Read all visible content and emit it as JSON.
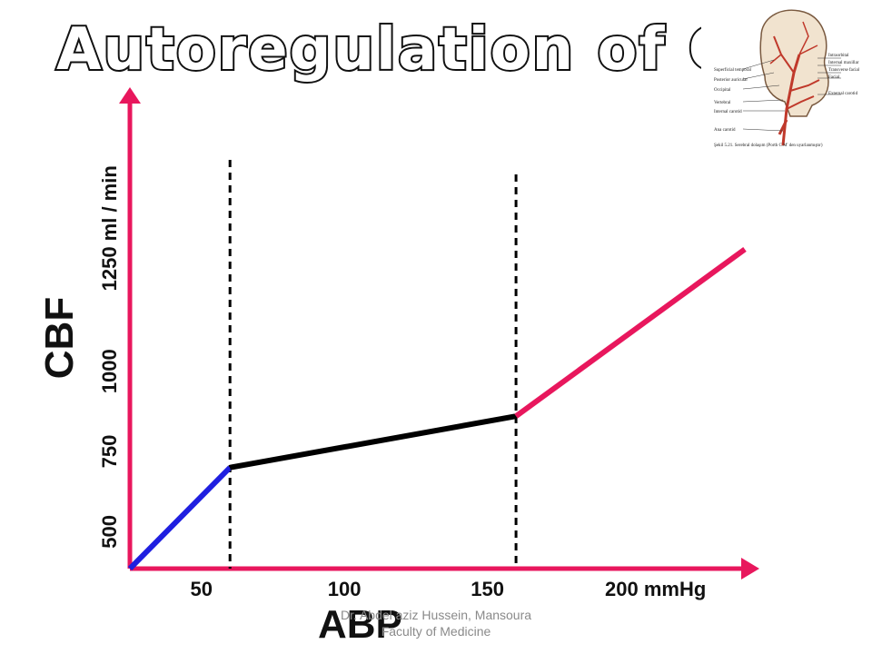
{
  "title": "Autoregulation of CBF",
  "footer": {
    "line1": "Dr. Abdel aziz Hussein, Mansoura",
    "line2": "Faculty of Medicine"
  },
  "inset_image": {
    "labels_left": [
      "Superficial temporal",
      "Posterior auricular",
      "Occipital",
      "Vertebral",
      "Internal carotid",
      "Ana carotid"
    ],
    "labels_right": [
      "Intraorbital",
      "Internal maxillar",
      "Transverse facial",
      "Facial",
      "External carotid"
    ],
    "caption": "Şekil 5.21. Serebral dolaşım (Porth C.M' den uyarlanmıştır)"
  },
  "chart_data": {
    "type": "line",
    "xlabel": "ABP",
    "ylabel": "CBF",
    "x_unit": "mmHg",
    "y_unit": "ml / min",
    "x_ticks": [
      "50",
      "100",
      "150",
      "200 mmHg"
    ],
    "y_ticks": [
      "500",
      "750",
      "1000",
      "1250 ml / min"
    ],
    "x_tick_values": [
      50,
      100,
      150,
      200
    ],
    "y_tick_values": [
      500,
      750,
      1000,
      1250
    ],
    "xlim": [
      25,
      240
    ],
    "ylim": [
      385,
      1520
    ],
    "reference_lines": [
      60,
      160
    ],
    "series": [
      {
        "color": "#1f1fe0",
        "points": [
          [
            25,
            385
          ],
          [
            60,
            700
          ]
        ]
      },
      {
        "color": "#000000",
        "points": [
          [
            60,
            700
          ],
          [
            160,
            860
          ]
        ]
      },
      {
        "color": "#e8175d",
        "points": [
          [
            160,
            860
          ],
          [
            240,
            1380
          ]
        ]
      }
    ],
    "axis_color": "#e8175d",
    "grid": false
  }
}
